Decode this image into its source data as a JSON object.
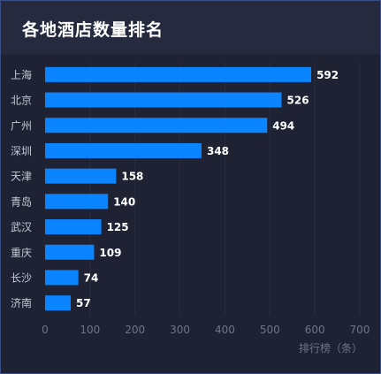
{
  "header": {
    "title": "各地酒店数量排名"
  },
  "colors": {
    "bar": "#0a84ff",
    "background": "#1f2233",
    "header": "#252a3f"
  },
  "chart_data": {
    "type": "bar",
    "orientation": "horizontal",
    "title": "各地酒店数量排名",
    "categories": [
      "上海",
      "北京",
      "广州",
      "深圳",
      "天津",
      "青岛",
      "武汉",
      "重庆",
      "长沙",
      "济南"
    ],
    "values": [
      592,
      526,
      494,
      348,
      158,
      140,
      125,
      109,
      74,
      57
    ],
    "xlabel": "排行榜（条）",
    "xlim": [
      0,
      700
    ],
    "xticks": [
      0,
      100,
      200,
      300,
      400,
      500,
      600,
      700
    ],
    "grid": true,
    "legend": "none"
  }
}
